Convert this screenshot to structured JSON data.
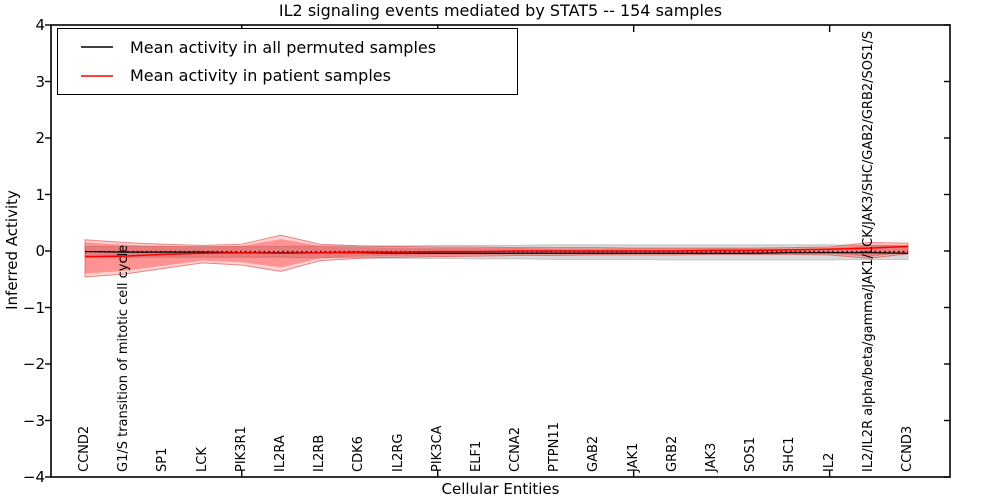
{
  "title": "IL2 signaling events mediated by STAT5 -- 154 samples",
  "legend": {
    "position": "upper-left",
    "entries": [
      {
        "label": "Mean activity in all permuted samples",
        "color": "#000000"
      },
      {
        "label": "Mean activity in patient samples",
        "color": "#ff0000"
      }
    ]
  },
  "chart_data": {
    "type": "line",
    "title": "IL2 signaling events mediated by STAT5 -- 154 samples",
    "xlabel": "Cellular Entities",
    "ylabel": "Inferred Activity",
    "ylim": [
      -4,
      4
    ],
    "grid": false,
    "x_categories": [
      "CCND2",
      "G1/S transition of mitotic cell cycle",
      "SP1",
      "LCK",
      "PIK3R1",
      "IL2RA",
      "IL2RB",
      "CDK6",
      "IL2RG",
      "PIK3CA",
      "ELF1",
      "CCNA2",
      "PTPN11",
      "GAB2",
      "JAK1",
      "GRB2",
      "JAK3",
      "SOS1",
      "SHC1",
      "IL2",
      "IL2/IL2R alpha/beta/gamma/JAK1/LCK/JAK3/SHC/GAB2/GRB2/SOS1/S",
      "CCND3"
    ],
    "yticks": [
      {
        "value": 4,
        "label": "4"
      },
      {
        "value": 3,
        "label": "3"
      },
      {
        "value": 2,
        "label": "2"
      },
      {
        "value": 1,
        "label": "1"
      },
      {
        "value": 0,
        "label": "0"
      },
      {
        "value": -1,
        "label": "−1"
      },
      {
        "value": -2,
        "label": "−2"
      },
      {
        "value": -3,
        "label": "−3"
      },
      {
        "value": -4,
        "label": "−4"
      }
    ],
    "x_axis_tick_indices": [
      4,
      9,
      14,
      19
    ],
    "series": [
      {
        "name": "zero-reference-dotted-line",
        "color": "#000000",
        "style": "dotted",
        "width": 1.3,
        "values": [
          -0.01,
          -0.01,
          -0.01,
          -0.01,
          -0.01,
          -0.01,
          -0.01,
          -0.01,
          -0.01,
          -0.01,
          -0.01,
          -0.01,
          -0.01,
          -0.01,
          -0.01,
          -0.01,
          -0.01,
          -0.01,
          -0.01,
          -0.01,
          -0.01,
          -0.01
        ]
      },
      {
        "name": "permuted-mean-line",
        "label": "Mean activity in all permuted samples",
        "color": "#000000",
        "style": "solid",
        "width": 1.2,
        "values": [
          -0.01,
          -0.02,
          -0.02,
          -0.02,
          -0.03,
          -0.03,
          -0.03,
          -0.03,
          -0.04,
          -0.04,
          -0.04,
          -0.04,
          -0.04,
          -0.04,
          -0.04,
          -0.04,
          -0.04,
          -0.04,
          -0.03,
          -0.03,
          -0.03,
          -0.04
        ]
      },
      {
        "name": "patient-mean-line",
        "label": "Mean activity in patient samples",
        "color": "#ff0000",
        "style": "solid",
        "width": 1.5,
        "values": [
          -0.1,
          -0.09,
          -0.06,
          -0.04,
          -0.03,
          -0.04,
          -0.03,
          -0.02,
          -0.02,
          -0.01,
          -0.01,
          0.0,
          0.0,
          0.0,
          0.0,
          0.0,
          0.01,
          0.01,
          0.02,
          0.03,
          0.05,
          0.08
        ]
      }
    ],
    "bands": [
      {
        "name": "permuted-std-band",
        "fill": "rgba(128,128,128,0.30)",
        "edge": "rgba(128,128,128,0.35)",
        "upper": [
          0.08,
          0.08,
          0.08,
          0.08,
          0.08,
          0.08,
          0.09,
          0.09,
          0.09,
          0.1,
          0.1,
          0.1,
          0.11,
          0.11,
          0.11,
          0.11,
          0.11,
          0.11,
          0.11,
          0.11,
          0.1,
          0.09
        ],
        "lower": [
          -0.11,
          -0.11,
          -0.11,
          -0.11,
          -0.11,
          -0.11,
          -0.12,
          -0.12,
          -0.13,
          -0.13,
          -0.14,
          -0.14,
          -0.15,
          -0.15,
          -0.15,
          -0.16,
          -0.16,
          -0.16,
          -0.16,
          -0.16,
          -0.15,
          -0.15
        ]
      },
      {
        "name": "patient-std-outer-band",
        "fill": "rgba(255,0,0,0.18)",
        "edge": "rgba(220,50,50,0.55)",
        "upper": [
          0.2,
          0.15,
          0.12,
          0.1,
          0.12,
          0.28,
          0.12,
          0.09,
          0.08,
          0.07,
          0.07,
          0.06,
          0.06,
          0.06,
          0.05,
          0.05,
          0.05,
          0.05,
          0.06,
          0.07,
          0.15,
          0.14
        ],
        "lower": [
          -0.46,
          -0.41,
          -0.31,
          -0.21,
          -0.25,
          -0.36,
          -0.17,
          -0.13,
          -0.11,
          -0.1,
          -0.09,
          -0.08,
          -0.08,
          -0.07,
          -0.07,
          -0.07,
          -0.06,
          -0.06,
          -0.06,
          -0.07,
          -0.13,
          -0.05
        ]
      },
      {
        "name": "patient-std-inner-band",
        "fill": "rgba(255,0,0,0.30)",
        "edge": "none",
        "upper": [
          0.15,
          0.11,
          0.09,
          0.08,
          0.09,
          0.21,
          0.09,
          0.07,
          0.06,
          0.05,
          0.05,
          0.05,
          0.04,
          0.04,
          0.04,
          0.04,
          0.04,
          0.04,
          0.04,
          0.05,
          0.11,
          0.11
        ],
        "lower": [
          -0.4,
          -0.35,
          -0.26,
          -0.17,
          -0.2,
          -0.29,
          -0.13,
          -0.1,
          -0.09,
          -0.08,
          -0.07,
          -0.06,
          -0.06,
          -0.06,
          -0.05,
          -0.05,
          -0.05,
          -0.05,
          -0.05,
          -0.05,
          -0.1,
          -0.03
        ]
      }
    ],
    "legend_position": "upper-left"
  }
}
